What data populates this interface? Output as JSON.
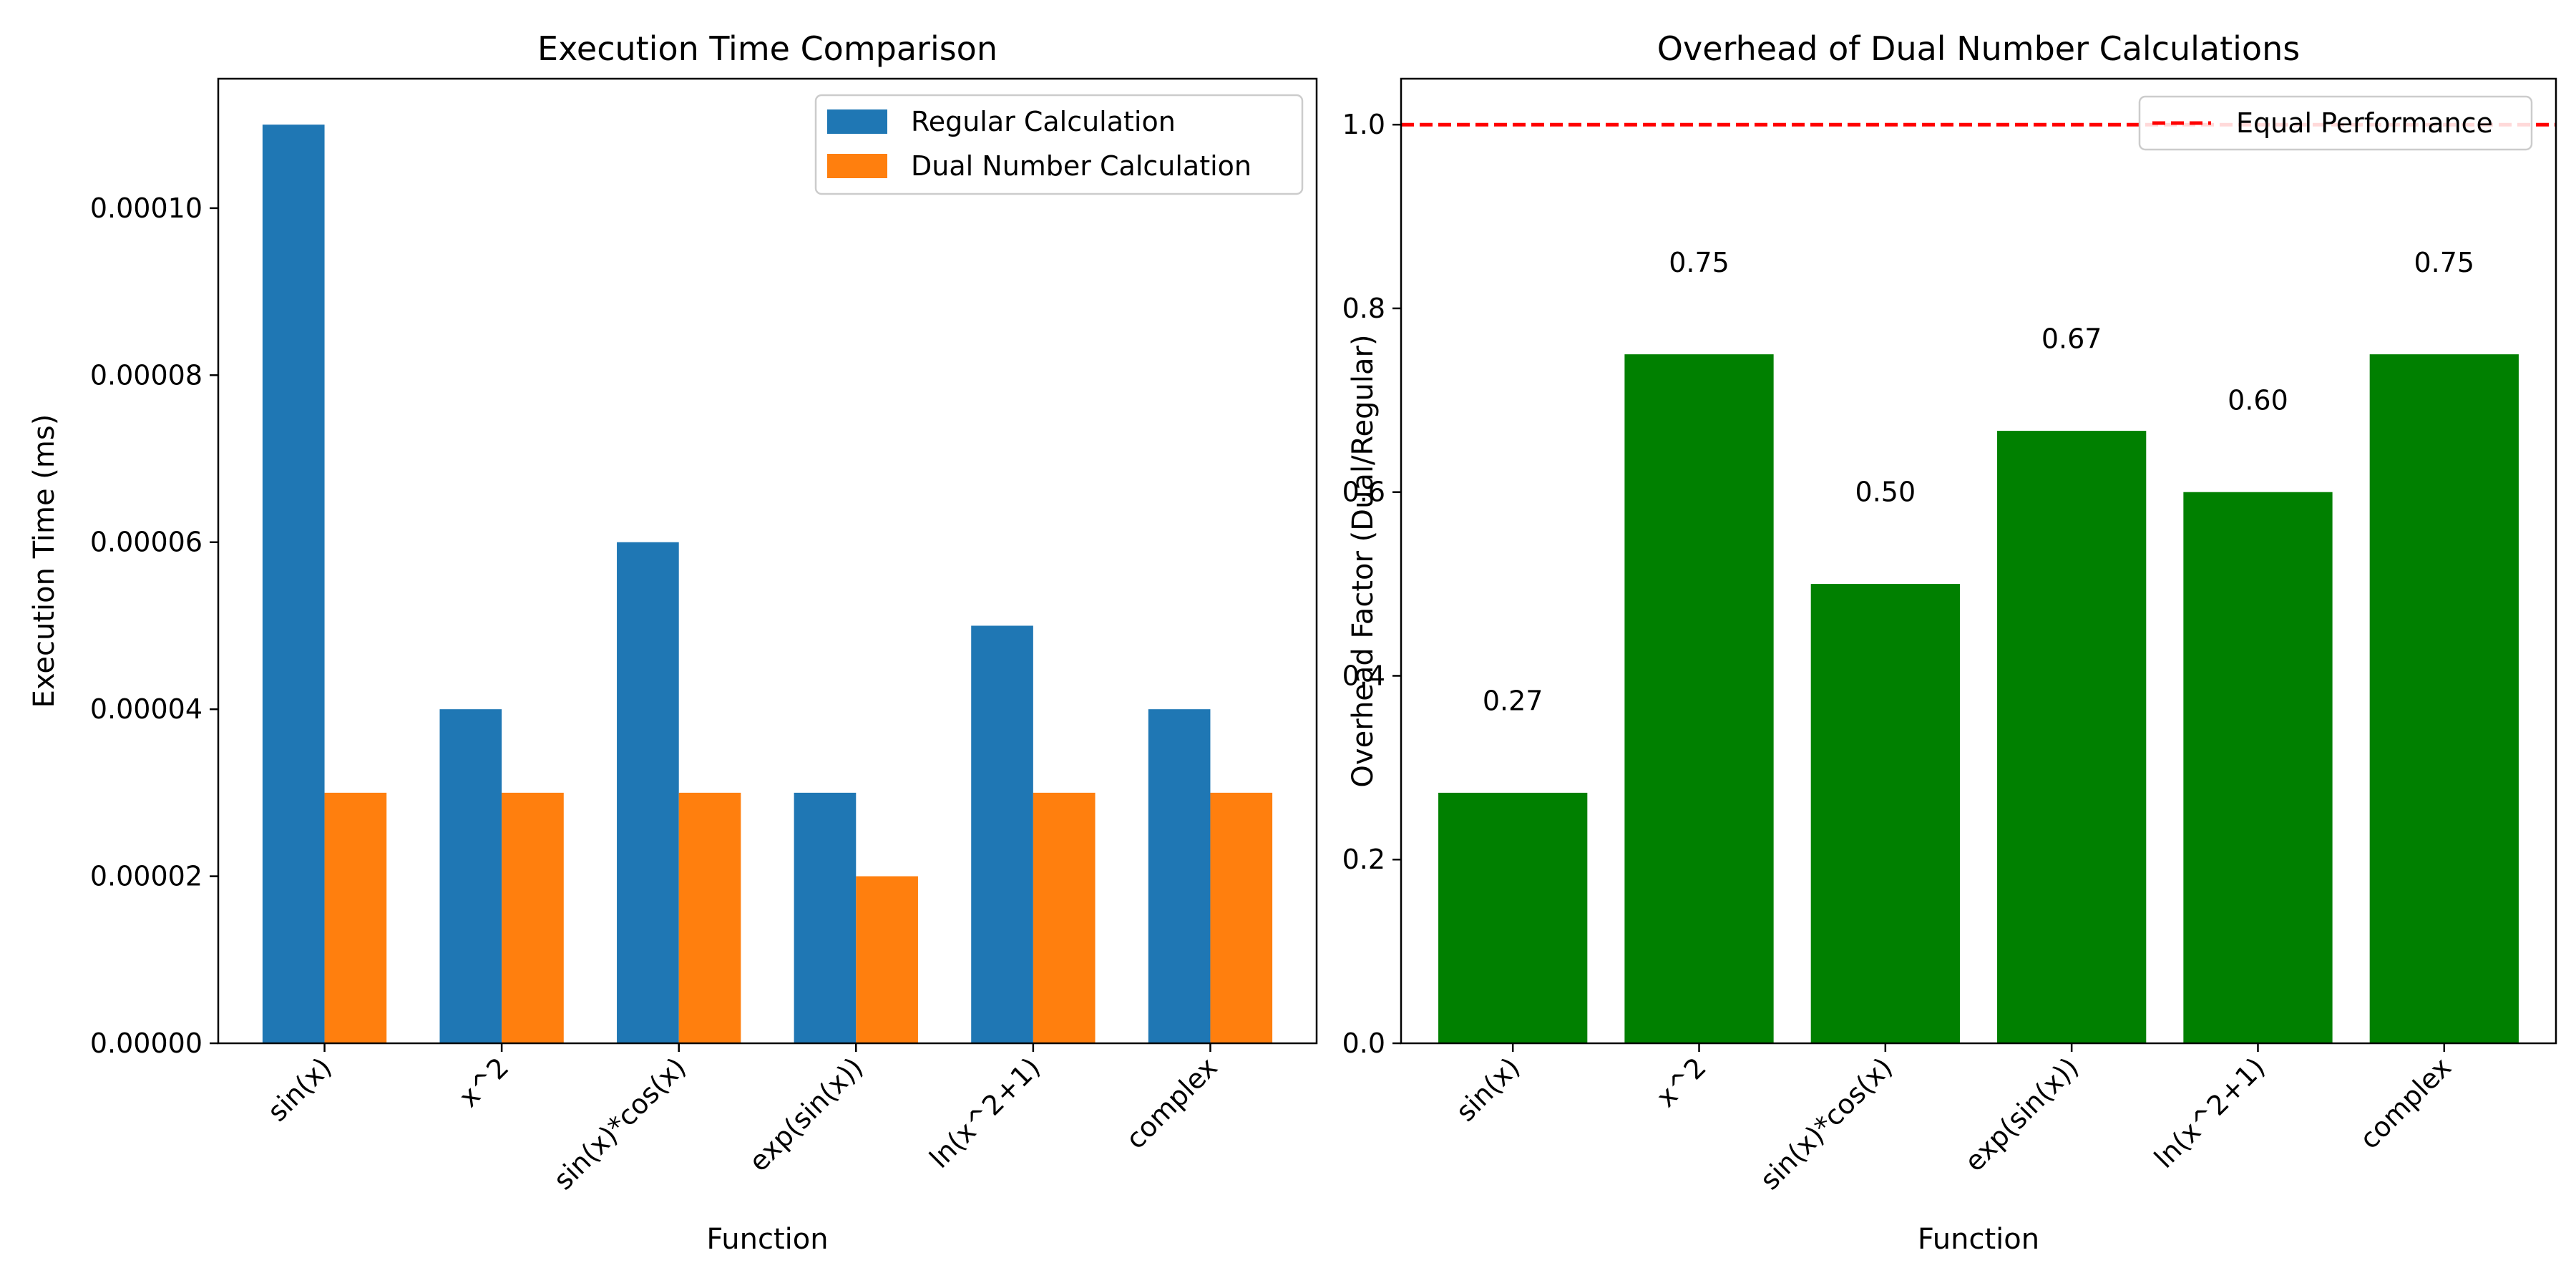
{
  "chart_data": [
    {
      "type": "bar",
      "title": "Execution Time Comparison",
      "xlabel": "Function",
      "ylabel": "Execution Time (ms)",
      "categories": [
        "sin(x)",
        "x^2",
        "sin(x)*cos(x)",
        "exp(sin(x))",
        "ln(x^2+1)",
        "complex"
      ],
      "series": [
        {
          "name": "Regular Calculation",
          "color": "#1f77b4",
          "values": [
            0.00011,
            4e-05,
            6e-05,
            3e-05,
            5e-05,
            4e-05
          ]
        },
        {
          "name": "Dual Number Calculation",
          "color": "#ff7f0e",
          "values": [
            3e-05,
            3e-05,
            3e-05,
            2e-05,
            3e-05,
            3e-05
          ]
        }
      ],
      "ylim": [
        0,
        0.0001155
      ],
      "yticks": [
        "0.00000",
        "0.00002",
        "0.00004",
        "0.00006",
        "0.00008",
        "0.00010"
      ],
      "ytick_values": [
        0,
        2e-05,
        4e-05,
        6e-05,
        8e-05,
        0.0001
      ],
      "legend_position": "top-right",
      "grid": false
    },
    {
      "type": "bar",
      "title": "Overhead of Dual Number Calculations",
      "xlabel": "Function",
      "ylabel": "Overhead Factor (Dual/Regular)",
      "categories": [
        "sin(x)",
        "x^2",
        "sin(x)*cos(x)",
        "exp(sin(x))",
        "ln(x^2+1)",
        "complex"
      ],
      "series": [
        {
          "name": "Overhead",
          "color": "#008000",
          "values": [
            0.2727,
            0.75,
            0.5,
            0.6667,
            0.6,
            0.75
          ]
        }
      ],
      "bar_labels": [
        "0.27",
        "0.75",
        "0.50",
        "0.67",
        "0.60",
        "0.75"
      ],
      "reference_line": {
        "name": "Equal Performance",
        "value": 1.0,
        "color": "#ff0000",
        "style": "dashed"
      },
      "ylim": [
        0,
        1.05
      ],
      "yticks": [
        "0.0",
        "0.2",
        "0.4",
        "0.6",
        "0.8",
        "1.0"
      ],
      "ytick_values": [
        0,
        0.2,
        0.4,
        0.6,
        0.8,
        1.0
      ],
      "legend_position": "top-right",
      "grid": false
    }
  ]
}
